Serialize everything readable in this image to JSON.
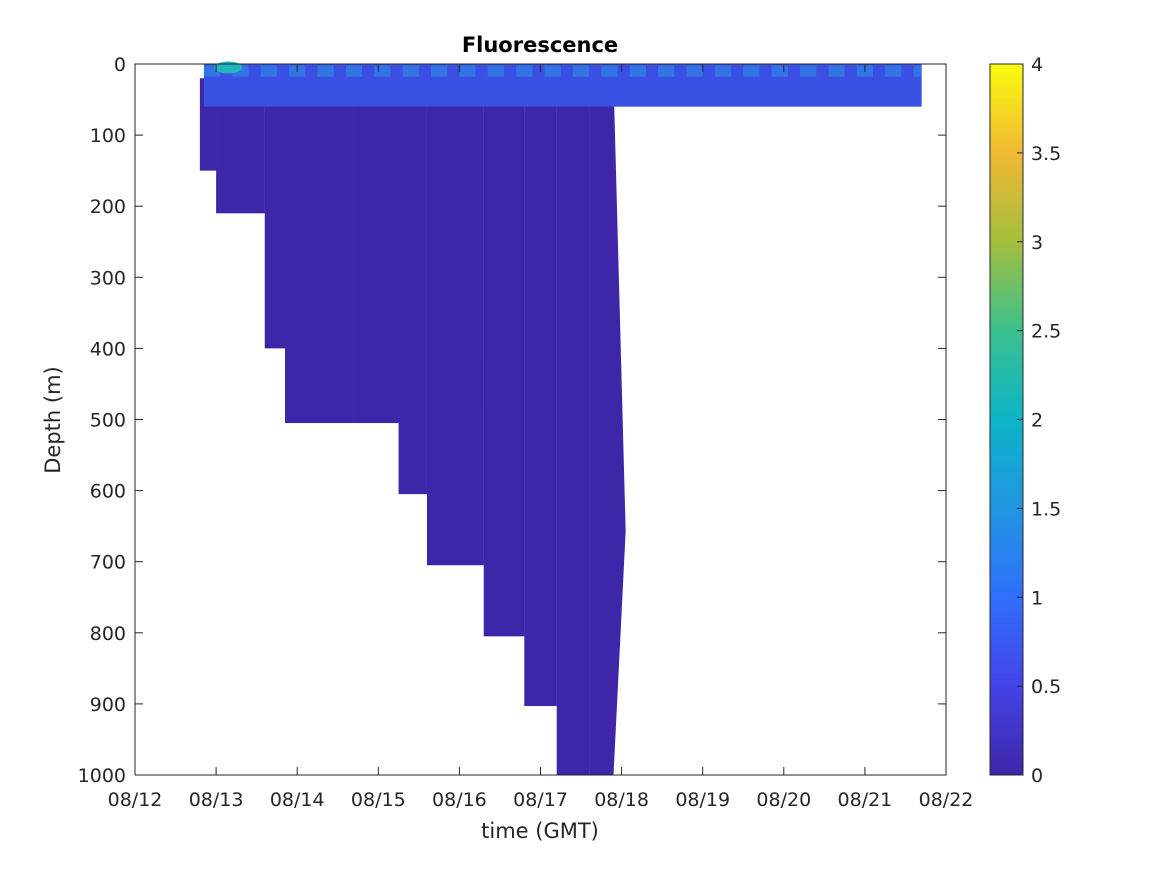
{
  "chart_data": {
    "type": "heatmap",
    "title": "Fluorescence",
    "xlabel": "time (GMT)",
    "ylabel": "Depth (m)",
    "x_ticks": [
      "08/12",
      "08/13",
      "08/14",
      "08/15",
      "08/16",
      "08/17",
      "08/18",
      "08/19",
      "08/20",
      "08/21",
      "08/22"
    ],
    "xlim_days": [
      0,
      10
    ],
    "y_ticks": [
      0,
      100,
      200,
      300,
      400,
      500,
      600,
      700,
      800,
      900,
      1000
    ],
    "ylim": [
      0,
      1000
    ],
    "y_reversed": true,
    "colorbar": {
      "ticks": [
        "0",
        "0.5",
        "1",
        "1.5",
        "2",
        "2.5",
        "3",
        "3.5",
        "4"
      ],
      "values": [
        0,
        0.5,
        1,
        1.5,
        2,
        2.5,
        3,
        3.5,
        4
      ],
      "clim": [
        0,
        4
      ],
      "colormap": "parula"
    },
    "colors": {
      "low": "#3e26a8",
      "surface": "#3950e3",
      "surface_high": "#2e8fe8",
      "peak": "#21b5bc"
    },
    "surface_layer": {
      "days": [
        0.85,
        9.7
      ],
      "depth_m": [
        0,
        60
      ],
      "typical_value": 0.6,
      "peak": {
        "day": 1.15,
        "depth_m": 5,
        "value": 2.0
      }
    },
    "deep_profiles": [
      {
        "day_start": 0.8,
        "day_end": 1.0,
        "max_depth": 150
      },
      {
        "day_start": 1.0,
        "day_end": 1.6,
        "max_depth": 210
      },
      {
        "day_start": 1.6,
        "day_end": 1.85,
        "max_depth": 400
      },
      {
        "day_start": 1.85,
        "day_end": 2.7,
        "max_depth": 505
      },
      {
        "day_start": 2.7,
        "day_end": 3.25,
        "max_depth": 505
      },
      {
        "day_start": 3.25,
        "day_end": 3.6,
        "max_depth": 605
      },
      {
        "day_start": 3.6,
        "day_end": 4.3,
        "max_depth": 705
      },
      {
        "day_start": 4.3,
        "day_end": 4.8,
        "max_depth": 805
      },
      {
        "day_start": 4.8,
        "day_end": 5.2,
        "max_depth": 903
      },
      {
        "day_start": 5.2,
        "day_end": 5.6,
        "max_depth": 1000
      },
      {
        "day_start": 5.6,
        "day_end": 5.9,
        "max_depth": 1000
      }
    ],
    "deep_value": 0.05
  }
}
